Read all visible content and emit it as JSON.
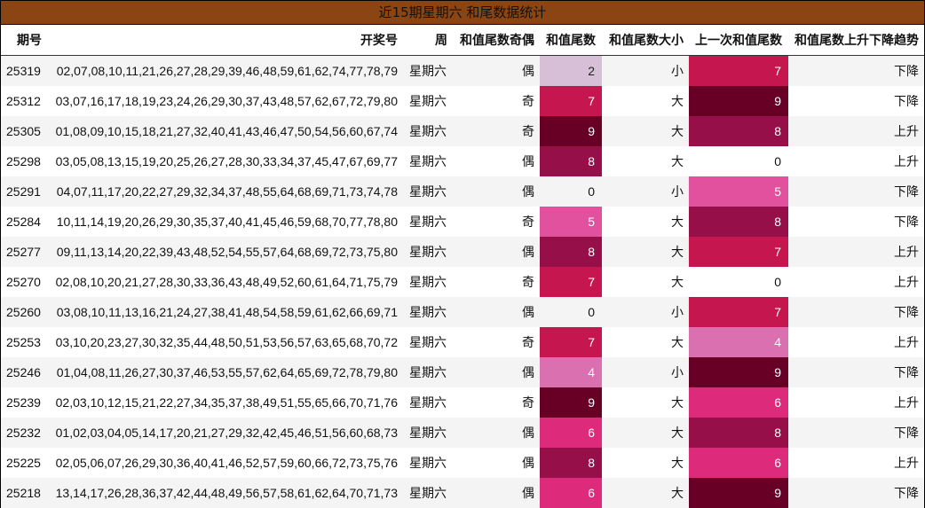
{
  "title": "近15期星期六 和尾数据统计",
  "headers": {
    "period": "期号",
    "numbers": "开奖号",
    "week": "周",
    "parity": "和值尾数奇偶",
    "tail": "和值尾数",
    "size": "和值尾数大小",
    "prev_tail": "上一次和值尾数",
    "trend": "和值尾数上升下降趋势"
  },
  "heat_colors": {
    "0": "#f4f4f4",
    "2": "#d8bfd8",
    "4": "#da70b0",
    "5": "#e2519e",
    "6": "#dd2a7a",
    "7": "#c51650",
    "8": "#970f48",
    "9": "#680025"
  },
  "rows": [
    {
      "period": "25319",
      "numbers": "02,07,08,10,11,21,26,27,28,29,39,46,48,59,61,62,74,77,78,79",
      "week": "星期六",
      "parity": "偶",
      "tail": "2",
      "size": "小",
      "prev_tail": "7",
      "trend": "下降"
    },
    {
      "period": "25312",
      "numbers": "03,07,16,17,18,19,23,24,26,29,30,37,43,48,57,62,67,72,79,80",
      "week": "星期六",
      "parity": "奇",
      "tail": "7",
      "size": "大",
      "prev_tail": "9",
      "trend": "下降"
    },
    {
      "period": "25305",
      "numbers": "01,08,09,10,15,18,21,27,32,40,41,43,46,47,50,54,56,60,67,74",
      "week": "星期六",
      "parity": "奇",
      "tail": "9",
      "size": "大",
      "prev_tail": "8",
      "trend": "上升"
    },
    {
      "period": "25298",
      "numbers": "03,05,08,13,15,19,20,25,26,27,28,30,33,34,37,45,47,67,69,77",
      "week": "星期六",
      "parity": "偶",
      "tail": "8",
      "size": "大",
      "prev_tail": "0",
      "trend": "上升"
    },
    {
      "period": "25291",
      "numbers": "04,07,11,17,20,22,27,29,32,34,37,48,55,64,68,69,71,73,74,78",
      "week": "星期六",
      "parity": "偶",
      "tail": "0",
      "size": "小",
      "prev_tail": "5",
      "trend": "下降"
    },
    {
      "period": "25284",
      "numbers": "10,11,14,19,20,26,29,30,35,37,40,41,45,46,59,68,70,77,78,80",
      "week": "星期六",
      "parity": "奇",
      "tail": "5",
      "size": "大",
      "prev_tail": "8",
      "trend": "下降"
    },
    {
      "period": "25277",
      "numbers": "09,11,13,14,20,22,39,43,48,52,54,55,57,64,68,69,72,73,75,80",
      "week": "星期六",
      "parity": "偶",
      "tail": "8",
      "size": "大",
      "prev_tail": "7",
      "trend": "上升"
    },
    {
      "period": "25270",
      "numbers": "02,08,10,20,21,27,28,30,33,36,43,48,49,52,60,61,64,71,75,79",
      "week": "星期六",
      "parity": "奇",
      "tail": "7",
      "size": "大",
      "prev_tail": "0",
      "trend": "上升"
    },
    {
      "period": "25260",
      "numbers": "03,08,10,11,13,16,21,24,27,38,41,48,54,58,59,61,62,66,69,71",
      "week": "星期六",
      "parity": "偶",
      "tail": "0",
      "size": "小",
      "prev_tail": "7",
      "trend": "下降"
    },
    {
      "period": "25253",
      "numbers": "03,10,20,23,27,30,32,35,44,48,50,51,53,56,57,63,65,68,70,72",
      "week": "星期六",
      "parity": "奇",
      "tail": "7",
      "size": "大",
      "prev_tail": "4",
      "trend": "上升"
    },
    {
      "period": "25246",
      "numbers": "01,04,08,11,26,27,30,37,46,53,55,57,62,64,65,69,72,78,79,80",
      "week": "星期六",
      "parity": "偶",
      "tail": "4",
      "size": "小",
      "prev_tail": "9",
      "trend": "下降"
    },
    {
      "period": "25239",
      "numbers": "02,03,10,12,15,21,22,27,34,35,37,38,49,51,55,65,66,70,71,76",
      "week": "星期六",
      "parity": "奇",
      "tail": "9",
      "size": "大",
      "prev_tail": "6",
      "trend": "上升"
    },
    {
      "period": "25232",
      "numbers": "01,02,03,04,05,14,17,20,21,27,29,32,42,45,46,51,56,60,68,73",
      "week": "星期六",
      "parity": "偶",
      "tail": "6",
      "size": "大",
      "prev_tail": "8",
      "trend": "下降"
    },
    {
      "period": "25225",
      "numbers": "02,05,06,07,26,29,30,36,40,41,46,52,57,59,60,66,72,73,75,76",
      "week": "星期六",
      "parity": "偶",
      "tail": "8",
      "size": "大",
      "prev_tail": "6",
      "trend": "上升"
    },
    {
      "period": "25218",
      "numbers": "13,14,17,26,28,36,37,42,44,48,49,56,57,58,61,62,64,70,71,73",
      "week": "星期六",
      "parity": "偶",
      "tail": "6",
      "size": "大",
      "prev_tail": "9",
      "trend": "下降"
    }
  ]
}
